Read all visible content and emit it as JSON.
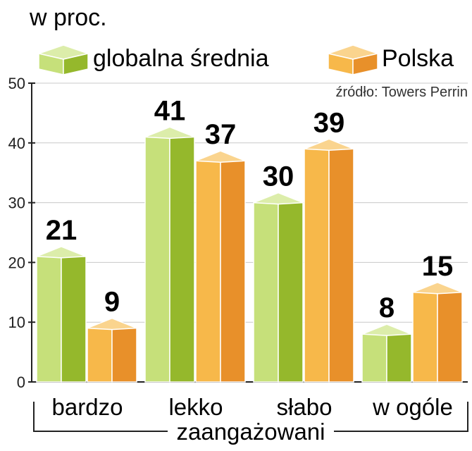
{
  "chart_data": {
    "type": "bar",
    "unit_label": "w proc.",
    "source": "źródło: Towers Perrin",
    "categories": [
      "bardzo",
      "lekko",
      "słabo",
      "w ogóle"
    ],
    "group_label": "zaangażowani",
    "series": [
      {
        "name": "globalna średnia",
        "values": [
          21,
          41,
          30,
          8
        ],
        "color": "#a8c93c"
      },
      {
        "name": "Polska",
        "values": [
          9,
          37,
          39,
          15
        ],
        "color": "#f0a030"
      }
    ],
    "ylim": [
      0,
      50
    ],
    "yticks": [
      "0",
      "10",
      "20",
      "30",
      "40",
      "50"
    ],
    "grid": true,
    "legend_position": "top"
  }
}
